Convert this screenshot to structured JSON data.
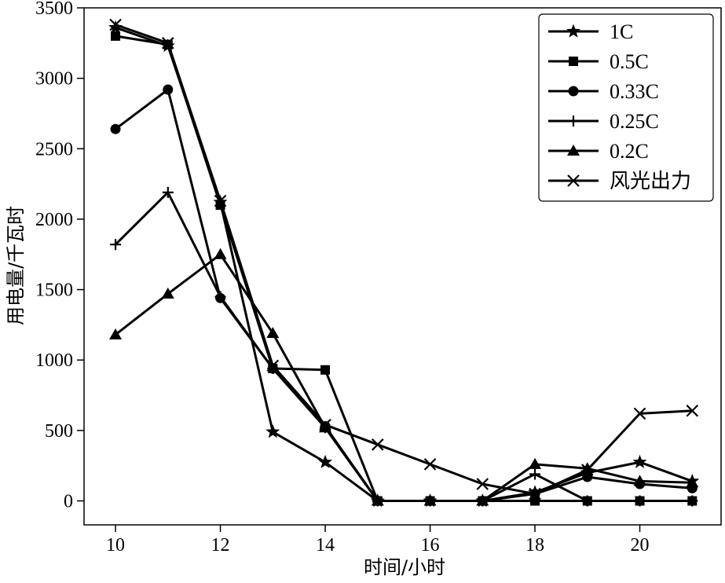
{
  "chart_data": {
    "type": "line",
    "title": "",
    "xlabel": "时间/小时",
    "ylabel": "用电量/千瓦时",
    "xlim": [
      9.4,
      21.55
    ],
    "ylim": [
      -170,
      3500
    ],
    "xticks": [
      10,
      12,
      14,
      16,
      18,
      20
    ],
    "yticks": [
      0,
      500,
      1000,
      1500,
      2000,
      2500,
      3000,
      3500
    ],
    "x": [
      10,
      11,
      12,
      13,
      14,
      15,
      16,
      17,
      18,
      19,
      20,
      21
    ],
    "grid": false,
    "legend": "top-right",
    "series": [
      {
        "name": "1C",
        "marker": "star",
        "values": [
          3360,
          3230,
          2120,
          490,
          275,
          0,
          0,
          0,
          60,
          200,
          275,
          140
        ]
      },
      {
        "name": "0.5C",
        "marker": "square",
        "values": [
          3300,
          3240,
          2100,
          940,
          930,
          0,
          0,
          0,
          0,
          0,
          0,
          0
        ]
      },
      {
        "name": "0.33C",
        "marker": "circle",
        "values": [
          2640,
          2920,
          1440,
          940,
          530,
          0,
          0,
          0,
          50,
          170,
          120,
          90
        ]
      },
      {
        "name": "0.25C",
        "marker": "plus",
        "values": [
          1820,
          2190,
          1450,
          940,
          520,
          0,
          0,
          0,
          190,
          0,
          0,
          0
        ]
      },
      {
        "name": "0.2C",
        "marker": "triangle",
        "values": [
          1180,
          1470,
          1750,
          1190,
          520,
          0,
          0,
          0,
          260,
          230,
          140,
          130
        ]
      },
      {
        "name": "风光出力",
        "marker": "x",
        "values": [
          3380,
          3250,
          2130,
          960,
          540,
          400,
          260,
          120,
          50,
          220,
          620,
          640
        ]
      }
    ]
  }
}
